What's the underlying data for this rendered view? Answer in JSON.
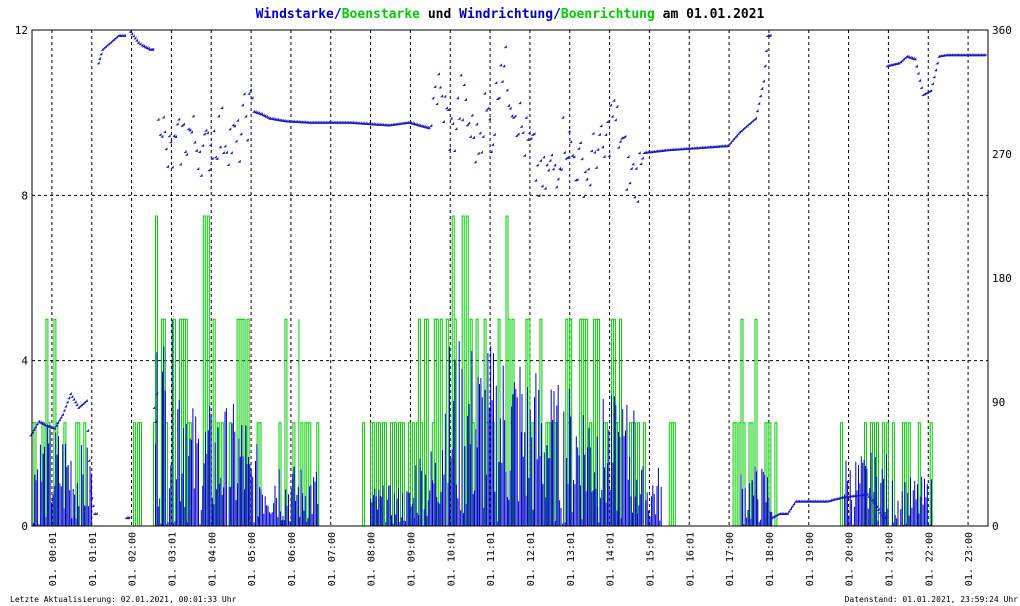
{
  "title": {
    "part1": "Windstarke",
    "sep1": "/",
    "part2": "Boenstarke",
    "mid": " und ",
    "part3": "Windrichtung",
    "sep2": "/",
    "part4": "Boenrichtung",
    "end": " am 01.01.2021"
  },
  "colors": {
    "wind": "#0000cc",
    "gust": "#00cc00",
    "dir": "#1a1acc",
    "gustdir": "#00dd00",
    "grid": "#000000"
  },
  "footer": {
    "left": "Letzte Aktualisierung: 02.01.2021, 00:01:33 Uhr",
    "right": "Datenstand: 01.01.2021, 23:59:24 Uhr"
  },
  "chart_data": {
    "type": "line",
    "title": "Windstarke/Boenstarke und Windrichtung/Boenrichtung am 01.01.2021",
    "x_ticks": [
      "01. 00:01",
      "01. 01:01",
      "01. 02:00",
      "01. 03:01",
      "01. 04:00",
      "01. 05:00",
      "01. 06:00",
      "01. 07:00",
      "01. 08:00",
      "01. 09:00",
      "01. 10:01",
      "01. 11:01",
      "01. 12:01",
      "01. 13:01",
      "01. 14:01",
      "01. 15:01",
      "01. 16:01",
      "01. 17:00",
      "01. 18:00",
      "01. 19:00",
      "01. 20:00",
      "01. 21:00",
      "01. 22:00",
      "01. 23:00"
    ],
    "x_range_hours": [
      0,
      24
    ],
    "y_left": {
      "ticks": [
        0,
        4,
        8,
        12
      ],
      "ylim": [
        0,
        12
      ]
    },
    "y_right": {
      "ticks": [
        0,
        90,
        180,
        270,
        360
      ],
      "ylim": [
        0,
        360
      ]
    },
    "grid": true,
    "legend": "in title",
    "gust_levels": [
      0,
      2.5,
      5,
      7.5
    ],
    "gust_segments": [
      [
        0.0,
        0.6,
        5
      ],
      [
        0.6,
        1.5,
        2.5
      ],
      [
        1.5,
        1.8,
        0
      ],
      [
        2.0,
        2.5,
        0
      ],
      [
        2.5,
        3.1,
        2.5
      ],
      [
        3.1,
        3.3,
        7.5
      ],
      [
        3.3,
        3.9,
        5
      ],
      [
        3.9,
        4.3,
        2.5
      ],
      [
        4.3,
        4.6,
        7.5
      ],
      [
        4.6,
        5.0,
        2.5
      ],
      [
        5.0,
        5.5,
        5
      ],
      [
        5.5,
        6.3,
        2.5
      ],
      [
        6.3,
        6.7,
        5
      ],
      [
        6.7,
        7.3,
        2.5
      ],
      [
        8.0,
        8.3,
        0
      ],
      [
        8.3,
        9.0,
        2.5
      ],
      [
        9.0,
        9.7,
        2.5
      ],
      [
        9.7,
        10.4,
        5
      ],
      [
        10.4,
        11.0,
        7.5
      ],
      [
        11.0,
        11.6,
        5
      ],
      [
        11.6,
        12.0,
        7.5
      ],
      [
        12.0,
        12.8,
        5
      ],
      [
        12.8,
        13.4,
        2.5
      ],
      [
        13.4,
        14.1,
        5
      ],
      [
        14.1,
        14.8,
        5
      ],
      [
        14.8,
        15.3,
        2.5
      ],
      [
        15.3,
        15.7,
        2.5
      ],
      [
        16.0,
        16.3,
        2.5
      ],
      [
        17.2,
        17.4,
        2.5
      ],
      [
        17.6,
        18.3,
        5
      ],
      [
        18.3,
        18.7,
        2.5
      ],
      [
        19.0,
        20.0,
        0
      ],
      [
        20.0,
        20.8,
        2.5
      ],
      [
        20.8,
        21.5,
        2.5
      ],
      [
        21.5,
        22.1,
        2.5
      ],
      [
        22.2,
        22.6,
        2.5
      ]
    ],
    "wind_max_segments": [
      [
        0.0,
        1.0,
        2.5
      ],
      [
        1.0,
        1.5,
        2.0
      ],
      [
        3.1,
        3.9,
        5.0
      ],
      [
        3.9,
        5.4,
        3.0
      ],
      [
        5.4,
        6.3,
        2.0
      ],
      [
        6.3,
        7.2,
        1.5
      ],
      [
        8.5,
        9.6,
        1.0
      ],
      [
        9.6,
        10.2,
        2.0
      ],
      [
        10.2,
        11.2,
        4.6
      ],
      [
        11.2,
        12.3,
        4.5
      ],
      [
        12.3,
        13.0,
        4.0
      ],
      [
        13.0,
        14.2,
        3.5
      ],
      [
        14.2,
        15.2,
        3.2
      ],
      [
        15.2,
        15.8,
        1.5
      ],
      [
        17.8,
        18.6,
        1.5
      ],
      [
        20.4,
        21.5,
        1.8
      ],
      [
        21.6,
        22.6,
        1.2
      ]
    ],
    "direction_deg": [
      {
        "x": 0.0,
        "y": 65
      },
      {
        "x": 0.2,
        "y": 75
      },
      {
        "x": 0.4,
        "y": 72
      },
      {
        "x": 0.6,
        "y": 70
      },
      {
        "x": 0.8,
        "y": 80
      },
      {
        "x": 1.0,
        "y": 95
      },
      {
        "x": 1.2,
        "y": 85
      },
      {
        "x": 1.4,
        "y": 90
      },
      {
        "x": 1.5,
        "y": 25
      },
      {
        "x": 1.6,
        "y": 8
      },
      {
        "x": 1.7,
        "y": 335
      },
      {
        "x": 1.8,
        "y": 345
      },
      {
        "x": 2.0,
        "y": 350
      },
      {
        "x": 2.2,
        "y": 355
      },
      {
        "x": 2.4,
        "y": 5
      },
      {
        "x": 2.5,
        "y": 358
      },
      {
        "x": 2.7,
        "y": 350
      },
      {
        "x": 2.8,
        "y": 348
      },
      {
        "x": 3.0,
        "y": 345
      },
      {
        "x": 3.1,
        "y": 85
      },
      {
        "x": 3.2,
        "y": 310
      },
      {
        "x": 3.3,
        "y": 295
      },
      {
        "x": 3.4,
        "y": 265
      },
      {
        "x": 3.6,
        "y": 270
      },
      {
        "x": 3.8,
        "y": 280
      },
      {
        "x": 4.0,
        "y": 285
      },
      {
        "x": 4.2,
        "y": 275
      },
      {
        "x": 4.4,
        "y": 270
      },
      {
        "x": 4.6,
        "y": 282
      },
      {
        "x": 4.8,
        "y": 285
      },
      {
        "x": 5.0,
        "y": 280
      },
      {
        "x": 5.2,
        "y": 275
      },
      {
        "x": 5.4,
        "y": 298
      },
      {
        "x": 5.6,
        "y": 300
      },
      {
        "x": 5.8,
        "y": 298
      },
      {
        "x": 6.0,
        "y": 295
      },
      {
        "x": 6.4,
        "y": 293
      },
      {
        "x": 7.0,
        "y": 292
      },
      {
        "x": 8.0,
        "y": 292
      },
      {
        "x": 9.0,
        "y": 290
      },
      {
        "x": 9.5,
        "y": 292
      },
      {
        "x": 10.0,
        "y": 288
      },
      {
        "x": 10.1,
        "y": 320
      },
      {
        "x": 10.2,
        "y": 315
      },
      {
        "x": 10.4,
        "y": 300
      },
      {
        "x": 10.6,
        "y": 280
      },
      {
        "x": 10.8,
        "y": 310
      },
      {
        "x": 11.0,
        "y": 290
      },
      {
        "x": 11.2,
        "y": 275
      },
      {
        "x": 11.4,
        "y": 300
      },
      {
        "x": 11.6,
        "y": 285
      },
      {
        "x": 11.8,
        "y": 340
      },
      {
        "x": 12.0,
        "y": 320
      },
      {
        "x": 12.2,
        "y": 300
      },
      {
        "x": 12.4,
        "y": 280
      },
      {
        "x": 12.6,
        "y": 270
      },
      {
        "x": 12.8,
        "y": 245
      },
      {
        "x": 13.0,
        "y": 255
      },
      {
        "x": 13.2,
        "y": 262
      },
      {
        "x": 13.4,
        "y": 285
      },
      {
        "x": 13.6,
        "y": 268
      },
      {
        "x": 13.8,
        "y": 260
      },
      {
        "x": 14.0,
        "y": 255
      },
      {
        "x": 14.2,
        "y": 275
      },
      {
        "x": 14.4,
        "y": 268
      },
      {
        "x": 14.6,
        "y": 300
      },
      {
        "x": 14.8,
        "y": 280
      },
      {
        "x": 15.0,
        "y": 255
      },
      {
        "x": 15.2,
        "y": 250
      },
      {
        "x": 15.4,
        "y": 270
      },
      {
        "x": 16.0,
        "y": 272
      },
      {
        "x": 17.0,
        "y": 274
      },
      {
        "x": 17.5,
        "y": 275
      },
      {
        "x": 17.8,
        "y": 285
      },
      {
        "x": 18.0,
        "y": 290
      },
      {
        "x": 18.2,
        "y": 295
      },
      {
        "x": 18.4,
        "y": 322
      },
      {
        "x": 18.5,
        "y": 355
      },
      {
        "x": 18.6,
        "y": 5
      },
      {
        "x": 18.8,
        "y": 8
      },
      {
        "x": 19.0,
        "y": 8
      },
      {
        "x": 19.2,
        "y": 17
      },
      {
        "x": 20.0,
        "y": 17
      },
      {
        "x": 20.4,
        "y": 20
      },
      {
        "x": 21.0,
        "y": 22
      },
      {
        "x": 21.2,
        "y": 15
      },
      {
        "x": 21.4,
        "y": 5
      },
      {
        "x": 21.5,
        "y": 333
      },
      {
        "x": 21.8,
        "y": 335
      },
      {
        "x": 22.0,
        "y": 340
      },
      {
        "x": 22.2,
        "y": 338
      },
      {
        "x": 22.4,
        "y": 312
      },
      {
        "x": 22.6,
        "y": 315
      },
      {
        "x": 22.8,
        "y": 340
      },
      {
        "x": 23.0,
        "y": 341
      },
      {
        "x": 23.5,
        "y": 341
      },
      {
        "x": 24.0,
        "y": 341
      }
    ],
    "gust_direction_deg": [
      {
        "x": 0.1,
        "y": 80
      },
      {
        "x": 0.5,
        "y": 75
      },
      {
        "x": 1.0,
        "y": 83
      },
      {
        "x": 1.3,
        "y": 350
      },
      {
        "x": 1.8,
        "y": 350
      },
      {
        "x": 2.1,
        "y": 358
      },
      {
        "x": 2.3,
        "y": 2
      },
      {
        "x": 2.6,
        "y": 348
      },
      {
        "x": 3.3,
        "y": 315
      },
      {
        "x": 3.5,
        "y": 275
      },
      {
        "x": 3.6,
        "y": 258
      },
      {
        "x": 3.9,
        "y": 280
      },
      {
        "x": 4.3,
        "y": 270
      },
      {
        "x": 4.8,
        "y": 285
      },
      {
        "x": 5.3,
        "y": 280
      },
      {
        "x": 10.3,
        "y": 325
      },
      {
        "x": 10.5,
        "y": 305
      },
      {
        "x": 10.9,
        "y": 320
      },
      {
        "x": 11.3,
        "y": 300
      },
      {
        "x": 11.7,
        "y": 310
      },
      {
        "x": 12.2,
        "y": 325
      },
      {
        "x": 12.5,
        "y": 290
      },
      {
        "x": 13.0,
        "y": 265
      },
      {
        "x": 13.4,
        "y": 250
      },
      {
        "x": 13.9,
        "y": 270
      },
      {
        "x": 14.3,
        "y": 272
      },
      {
        "x": 14.9,
        "y": 268
      },
      {
        "x": 15.1,
        "y": 255
      },
      {
        "x": 18.2,
        "y": 295
      },
      {
        "x": 21.8,
        "y": 333
      },
      {
        "x": 22.1,
        "y": 340
      },
      {
        "x": 22.6,
        "y": 314
      }
    ]
  }
}
